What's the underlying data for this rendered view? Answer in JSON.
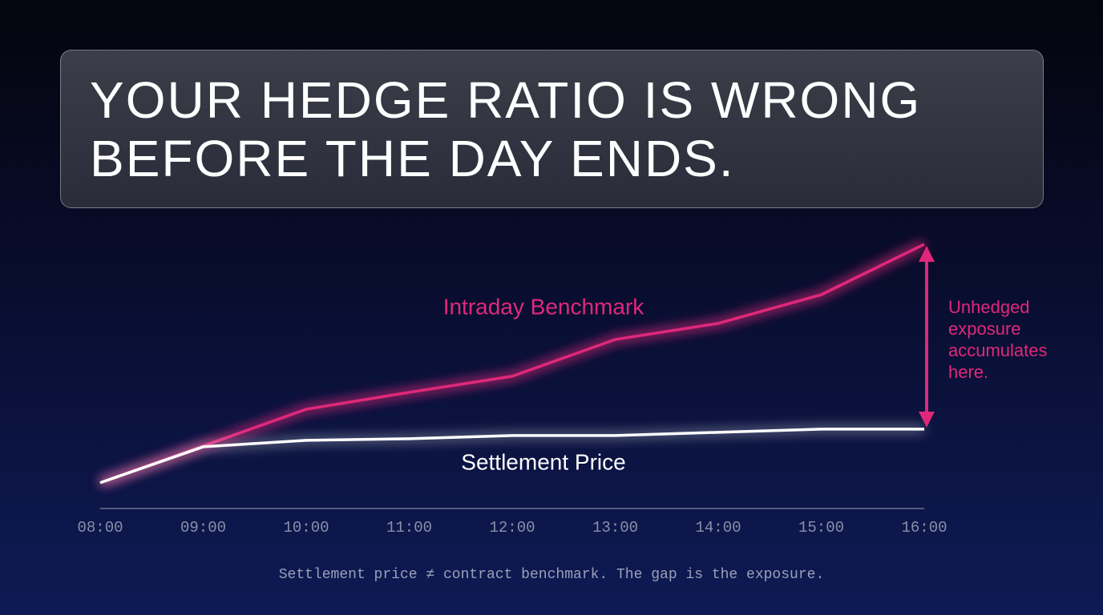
{
  "chart_data": {
    "type": "line",
    "title": "YOUR HEDGE RATIO IS WRONG BEFORE THE DAY ENDS.",
    "categories": [
      "08:00",
      "09:00",
      "10:00",
      "11:00",
      "12:00",
      "13:00",
      "14:00",
      "15:00",
      "16:00"
    ],
    "series": [
      {
        "name": "Intraday Benchmark",
        "color": "#e0287a",
        "values": [
          9.6,
          23.3,
          37,
          43.3,
          49.3,
          63,
          69,
          79.7,
          98.5
        ]
      },
      {
        "name": "Settlement Price",
        "color": "#ffffff",
        "values": [
          9.6,
          23,
          25.4,
          26,
          27.2,
          27.2,
          28.4,
          29.6,
          29.6
        ]
      }
    ],
    "ylim": [
      0,
      100
    ],
    "annotation": "Unhedged exposure accumulates here.",
    "footnote": "Settlement price ≠ contract benchmark. The gap is the exposure."
  }
}
